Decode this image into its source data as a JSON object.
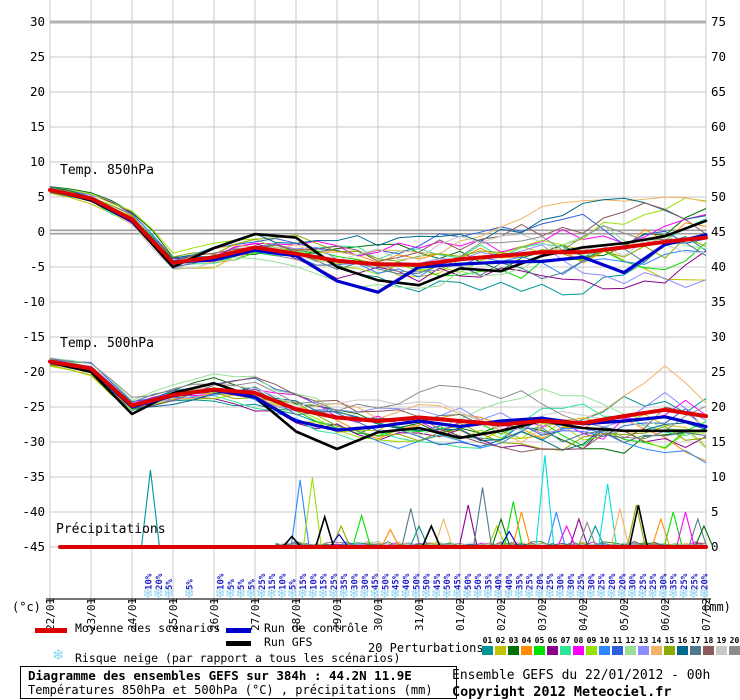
{
  "header_box": {
    "line1": "Diagramme des ensembles GEFS sur 384h : 44.2N 11.9E",
    "line2": "Températures 850hPa et 500hPa (°C) , précipitations (mm)"
  },
  "footer_right": {
    "run_info": "Ensemble GEFS du 22/01/2012 - 00h",
    "copyright": "Copyright 2012 Meteociel.fr"
  },
  "panel_labels": {
    "t850": "Temp. 850hPa",
    "t500": "Temp. 500hPa",
    "precip": "Précipitations"
  },
  "axes": {
    "left_unit": "(°c)",
    "right_unit": "(mm)",
    "left_ticks": [
      "30",
      "25",
      "20",
      "15",
      "10",
      "5",
      "0",
      "-5",
      "-10",
      "-15",
      "-20",
      "-25",
      "-30",
      "-35",
      "-40",
      "-45"
    ],
    "right_ticks": [
      "75",
      "70",
      "65",
      "60",
      "55",
      "50",
      "45",
      "40",
      "35",
      "30",
      "25",
      "20",
      "15",
      "10",
      "5",
      "0"
    ],
    "dates": [
      "22/01",
      "23/01",
      "24/01",
      "25/01",
      "26/01",
      "27/01",
      "28/01",
      "29/01",
      "30/01",
      "31/01",
      "01/02",
      "02/02",
      "03/02",
      "04/02",
      "05/02",
      "06/02",
      "07/02"
    ]
  },
  "legend": {
    "mean_label": "Moyenne des scénarios",
    "control_label": "Run de contrôle",
    "gfs_label": "Run GFS",
    "snow_label": "Risque neige (par rapport a tous les scénarios)",
    "perturbations_label": "20 Perturbations",
    "perturbation_numbers": [
      "01",
      "02",
      "03",
      "04",
      "05",
      "06",
      "07",
      "08",
      "09",
      "10",
      "11",
      "12",
      "13",
      "14",
      "15",
      "16",
      "17",
      "18",
      "19",
      "20"
    ],
    "perturbation_colors": [
      "#009494",
      "#C2C200",
      "#007000",
      "#FF8C00",
      "#00E000",
      "#8B008B",
      "#2EE598",
      "#FF00FF",
      "#9AE000",
      "#2E86FF",
      "#2E5EDC",
      "#98E098",
      "#8C8CFF",
      "#F0B464",
      "#8CAA00",
      "#006A8C",
      "#50788C",
      "#8C5A5A",
      "#C8C8C8",
      "#8C8C8C"
    ]
  },
  "colors": {
    "mean": "#DD0000",
    "control": "#0000CC",
    "gfs": "#000000",
    "grid": "#C9C9C9",
    "grid_top": "#B2B2B2",
    "zero_line": "#9E9E9E",
    "snow_text": "#2222C8",
    "snowflake": "#8FD3F2"
  },
  "snow_risk": {
    "start_day": 2.39,
    "step_day": 0.2512,
    "values": [
      "10%",
      "20%",
      "5%",
      null,
      "5%",
      null,
      null,
      "10%",
      "5%",
      "5%",
      "5%",
      "25%",
      "15%",
      "10%",
      "5%",
      "15%",
      "10%",
      "15%",
      "25%",
      "35%",
      "30%",
      "30%",
      "45%",
      "50%",
      "45%",
      "40%",
      "50%",
      "50%",
      "45%",
      "50%",
      "45%",
      "50%",
      "50%",
      "35%",
      "40%",
      "40%",
      "35%",
      "25%",
      "20%",
      "25%",
      "30%",
      "30%",
      "25%",
      "30%",
      "25%",
      "20%",
      "20%",
      "30%",
      "25%",
      "25%",
      "30%",
      "35%",
      "25%",
      "25%",
      "20%"
    ]
  },
  "chart_data": {
    "type": "line",
    "title": "Diagramme des ensembles GEFS sur 384h : 44.2N 11.9E",
    "categories": [
      "22/01",
      "23/01",
      "24/01",
      "25/01",
      "26/01",
      "27/01",
      "28/01",
      "29/01",
      "30/01",
      "31/01",
      "01/02",
      "02/02",
      "03/02",
      "04/02",
      "05/02",
      "06/02",
      "07/02"
    ],
    "ylim_left": [
      -45,
      30
    ],
    "ylim_right": [
      0,
      75
    ],
    "grid": true,
    "panels": [
      {
        "id": "t850",
        "label": "Temp. 850hPa",
        "unit": "°C",
        "series": [
          {
            "name": "Moyenne des scénarios",
            "color": "#DD0000",
            "values": [
              6,
              4.8,
              1.8,
              -4.4,
              -3.6,
              -2.2,
              -3.1,
              -4.1,
              -4.6,
              -4.7,
              -3.9,
              -3.4,
              -2.9,
              -2.9,
              -2.2,
              -1.4,
              -0.8
            ]
          },
          {
            "name": "Run de contrôle",
            "color": "#0000CC",
            "values": [
              6,
              4.7,
              1.6,
              -4.3,
              -4,
              -2.6,
              -3.4,
              -7,
              -8.6,
              -5,
              -4.6,
              -4.3,
              -4.2,
              -3.6,
              -5.8,
              -1.8,
              -0.4
            ]
          },
          {
            "name": "Run GFS",
            "color": "#000000",
            "values": [
              6,
              4.5,
              1.5,
              -5,
              -2.3,
              -0.3,
              -0.8,
              -5,
              -6.9,
              -7.6,
              -5.2,
              -5.6,
              -3.4,
              -2.2,
              -1.6,
              -0.6,
              1.6
            ]
          }
        ],
        "envelope_min": [
          5.5,
          4,
          -0.5,
          -6.5,
          -7,
          -6,
          -8,
          -10,
          -12,
          -12,
          -13,
          -10.5,
          -9,
          -9,
          -10,
          -9,
          -8
        ],
        "envelope_max": [
          6.5,
          6.3,
          3.5,
          -1.5,
          -1.3,
          0.5,
          1,
          1.5,
          2,
          2.5,
          3,
          3.5,
          4,
          4.5,
          5,
          5,
          5
        ]
      },
      {
        "id": "t500",
        "label": "Temp. 500hPa",
        "unit": "°C",
        "series": [
          {
            "name": "Moyenne des scénarios",
            "color": "#DD0000",
            "values": [
              -18.5,
              -19.5,
              -24.8,
              -23.3,
              -22.5,
              -23,
              -25.3,
              -26.5,
              -27,
              -26.5,
              -27,
              -27.5,
              -27,
              -27.3,
              -26.3,
              -25.4,
              -26.3
            ]
          },
          {
            "name": "Run de contrôle",
            "color": "#0000CC",
            "values": [
              -18.5,
              -19.6,
              -25,
              -23.4,
              -22.6,
              -23.6,
              -27,
              -28.3,
              -27.8,
              -27,
              -27.8,
              -27,
              -26.6,
              -27.4,
              -27,
              -26.4,
              -27.8
            ]
          },
          {
            "name": "Run GFS",
            "color": "#000000",
            "values": [
              -18.6,
              -20,
              -26,
              -23,
              -21.6,
              -23.6,
              -28.5,
              -31,
              -28.6,
              -28,
              -29.4,
              -28.4,
              -27,
              -28,
              -28.4,
              -28.4,
              -28.4
            ]
          }
        ],
        "envelope_min": [
          -19.5,
          -21.5,
          -31,
          -27,
          -25,
          -26.5,
          -30,
          -33,
          -32,
          -30,
          -31,
          -31,
          -32,
          -31,
          -33,
          -34,
          -33
        ],
        "envelope_max": [
          -18,
          -18.5,
          -21.5,
          -20.5,
          -20,
          -20.5,
          -23,
          -24,
          -23,
          -22,
          -20.5,
          -20,
          -18.5,
          -17,
          -16.5,
          -16,
          -16
        ]
      },
      {
        "id": "precip",
        "label": "Précipitations",
        "unit": "mm",
        "mean_value": 0,
        "spikes": [
          {
            "color": "#009494",
            "points": [
              [
                2.45,
                11
              ],
              [
                9.0,
                3
              ],
              [
                13.3,
                3
              ]
            ]
          },
          {
            "color": "#2E86FF",
            "points": [
              [
                6.1,
                9.6
              ],
              [
                12.35,
                5
              ]
            ]
          },
          {
            "color": "#9AE000",
            "points": [
              [
                6.4,
                9.9
              ],
              [
                10.9,
                3
              ]
            ]
          },
          {
            "color": "#00E0E0",
            "points": [
              [
                12.07,
                13.1
              ],
              [
                13.6,
                9
              ]
            ]
          },
          {
            "color": "#00E000",
            "points": [
              [
                7.6,
                4.5
              ],
              [
                11.3,
                6.5
              ],
              [
                15.2,
                5
              ]
            ]
          },
          {
            "color": "#FF8C00",
            "points": [
              [
                8.3,
                2.5
              ],
              [
                11.5,
                5
              ],
              [
                14.9,
                4
              ]
            ]
          },
          {
            "color": "#8B008B",
            "points": [
              [
                10.2,
                6
              ],
              [
                12.9,
                4
              ]
            ]
          },
          {
            "color": "#50788C",
            "points": [
              [
                8.8,
                5.5
              ],
              [
                10.55,
                8.5
              ],
              [
                15.8,
                4
              ]
            ]
          },
          {
            "color": "#F0B464",
            "points": [
              [
                9.6,
                4
              ],
              [
                13.9,
                5.5
              ]
            ]
          },
          {
            "color": "#8CAA00",
            "points": [
              [
                7.1,
                3
              ],
              [
                14.3,
                6
              ]
            ]
          },
          {
            "color": "#FF00FF",
            "points": [
              [
                12.6,
                3
              ],
              [
                15.5,
                5
              ]
            ]
          },
          {
            "color": "#007000",
            "points": [
              [
                11.0,
                4
              ],
              [
                15.95,
                3
              ]
            ]
          },
          {
            "color": "#8C8C8C",
            "points": [
              [
                13.1,
                3.5
              ]
            ]
          },
          {
            "color": "#0000CC",
            "points": [
              [
                7.05,
                1.8
              ],
              [
                11.2,
                2.2
              ]
            ]
          },
          {
            "color": "#000000",
            "points": [
              [
                5.9,
                1.5
              ],
              [
                6.7,
                4.3
              ],
              [
                9.3,
                3
              ],
              [
                14.35,
                6
              ]
            ]
          }
        ]
      }
    ]
  }
}
